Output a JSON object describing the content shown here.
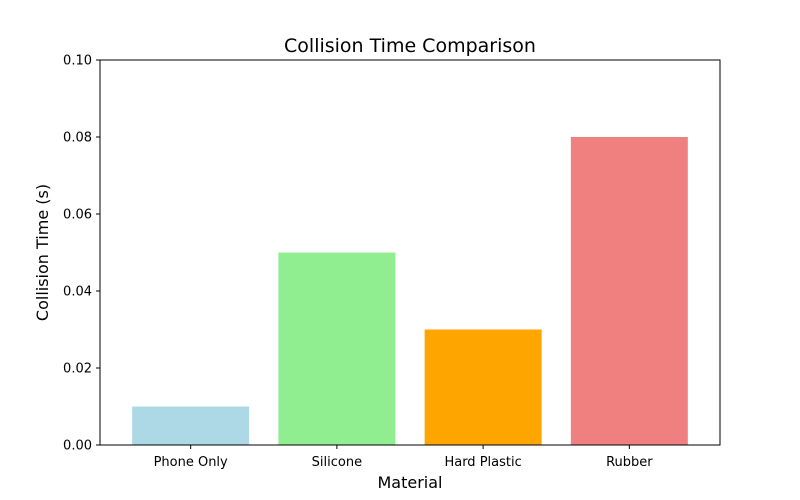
{
  "chart_data": {
    "type": "bar",
    "title": "Collision Time Comparison",
    "xlabel": "Material",
    "ylabel": "Collision Time (s)",
    "categories": [
      "Phone Only",
      "Silicone",
      "Hard Plastic",
      "Rubber"
    ],
    "values": [
      0.01,
      0.05,
      0.03,
      0.08
    ],
    "colors": [
      "#add8e6",
      "#90ee90",
      "#ffa500",
      "#f08080"
    ],
    "ylim": [
      0,
      0.1
    ],
    "yticks": [
      "0.00",
      "0.02",
      "0.04",
      "0.06",
      "0.08",
      "0.10"
    ],
    "grid": false,
    "legend": "none"
  }
}
